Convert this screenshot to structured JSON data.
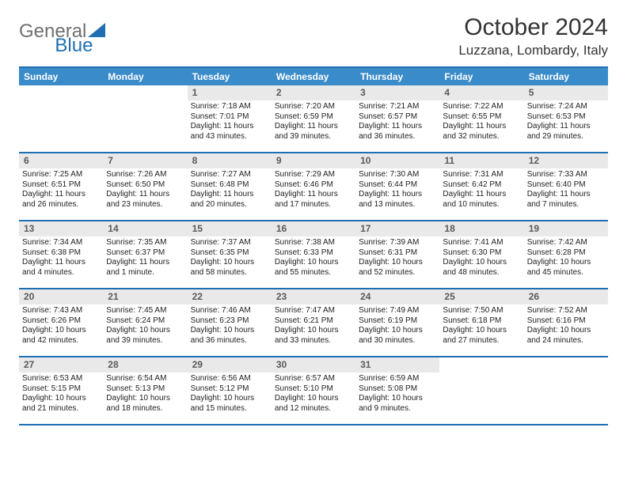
{
  "brand": {
    "part1": "General",
    "part2": "Blue"
  },
  "title": "October 2024",
  "location": "Luzzana, Lombardy, Italy",
  "colors": {
    "header_bar": "#3a8bc9",
    "rule": "#1f6fb2",
    "daynum_bg": "#e9e9e9",
    "logo_gray": "#6f6f6f",
    "logo_blue": "#1f6fb2"
  },
  "dow": [
    "Sunday",
    "Monday",
    "Tuesday",
    "Wednesday",
    "Thursday",
    "Friday",
    "Saturday"
  ],
  "weeks": [
    [
      {
        "n": "",
        "sr": "",
        "ss": "",
        "dl": ""
      },
      {
        "n": "",
        "sr": "",
        "ss": "",
        "dl": ""
      },
      {
        "n": "1",
        "sr": "Sunrise: 7:18 AM",
        "ss": "Sunset: 7:01 PM",
        "dl": "Daylight: 11 hours and 43 minutes."
      },
      {
        "n": "2",
        "sr": "Sunrise: 7:20 AM",
        "ss": "Sunset: 6:59 PM",
        "dl": "Daylight: 11 hours and 39 minutes."
      },
      {
        "n": "3",
        "sr": "Sunrise: 7:21 AM",
        "ss": "Sunset: 6:57 PM",
        "dl": "Daylight: 11 hours and 36 minutes."
      },
      {
        "n": "4",
        "sr": "Sunrise: 7:22 AM",
        "ss": "Sunset: 6:55 PM",
        "dl": "Daylight: 11 hours and 32 minutes."
      },
      {
        "n": "5",
        "sr": "Sunrise: 7:24 AM",
        "ss": "Sunset: 6:53 PM",
        "dl": "Daylight: 11 hours and 29 minutes."
      }
    ],
    [
      {
        "n": "6",
        "sr": "Sunrise: 7:25 AM",
        "ss": "Sunset: 6:51 PM",
        "dl": "Daylight: 11 hours and 26 minutes."
      },
      {
        "n": "7",
        "sr": "Sunrise: 7:26 AM",
        "ss": "Sunset: 6:50 PM",
        "dl": "Daylight: 11 hours and 23 minutes."
      },
      {
        "n": "8",
        "sr": "Sunrise: 7:27 AM",
        "ss": "Sunset: 6:48 PM",
        "dl": "Daylight: 11 hours and 20 minutes."
      },
      {
        "n": "9",
        "sr": "Sunrise: 7:29 AM",
        "ss": "Sunset: 6:46 PM",
        "dl": "Daylight: 11 hours and 17 minutes."
      },
      {
        "n": "10",
        "sr": "Sunrise: 7:30 AM",
        "ss": "Sunset: 6:44 PM",
        "dl": "Daylight: 11 hours and 13 minutes."
      },
      {
        "n": "11",
        "sr": "Sunrise: 7:31 AM",
        "ss": "Sunset: 6:42 PM",
        "dl": "Daylight: 11 hours and 10 minutes."
      },
      {
        "n": "12",
        "sr": "Sunrise: 7:33 AM",
        "ss": "Sunset: 6:40 PM",
        "dl": "Daylight: 11 hours and 7 minutes."
      }
    ],
    [
      {
        "n": "13",
        "sr": "Sunrise: 7:34 AM",
        "ss": "Sunset: 6:38 PM",
        "dl": "Daylight: 11 hours and 4 minutes."
      },
      {
        "n": "14",
        "sr": "Sunrise: 7:35 AM",
        "ss": "Sunset: 6:37 PM",
        "dl": "Daylight: 11 hours and 1 minute."
      },
      {
        "n": "15",
        "sr": "Sunrise: 7:37 AM",
        "ss": "Sunset: 6:35 PM",
        "dl": "Daylight: 10 hours and 58 minutes."
      },
      {
        "n": "16",
        "sr": "Sunrise: 7:38 AM",
        "ss": "Sunset: 6:33 PM",
        "dl": "Daylight: 10 hours and 55 minutes."
      },
      {
        "n": "17",
        "sr": "Sunrise: 7:39 AM",
        "ss": "Sunset: 6:31 PM",
        "dl": "Daylight: 10 hours and 52 minutes."
      },
      {
        "n": "18",
        "sr": "Sunrise: 7:41 AM",
        "ss": "Sunset: 6:30 PM",
        "dl": "Daylight: 10 hours and 48 minutes."
      },
      {
        "n": "19",
        "sr": "Sunrise: 7:42 AM",
        "ss": "Sunset: 6:28 PM",
        "dl": "Daylight: 10 hours and 45 minutes."
      }
    ],
    [
      {
        "n": "20",
        "sr": "Sunrise: 7:43 AM",
        "ss": "Sunset: 6:26 PM",
        "dl": "Daylight: 10 hours and 42 minutes."
      },
      {
        "n": "21",
        "sr": "Sunrise: 7:45 AM",
        "ss": "Sunset: 6:24 PM",
        "dl": "Daylight: 10 hours and 39 minutes."
      },
      {
        "n": "22",
        "sr": "Sunrise: 7:46 AM",
        "ss": "Sunset: 6:23 PM",
        "dl": "Daylight: 10 hours and 36 minutes."
      },
      {
        "n": "23",
        "sr": "Sunrise: 7:47 AM",
        "ss": "Sunset: 6:21 PM",
        "dl": "Daylight: 10 hours and 33 minutes."
      },
      {
        "n": "24",
        "sr": "Sunrise: 7:49 AM",
        "ss": "Sunset: 6:19 PM",
        "dl": "Daylight: 10 hours and 30 minutes."
      },
      {
        "n": "25",
        "sr": "Sunrise: 7:50 AM",
        "ss": "Sunset: 6:18 PM",
        "dl": "Daylight: 10 hours and 27 minutes."
      },
      {
        "n": "26",
        "sr": "Sunrise: 7:52 AM",
        "ss": "Sunset: 6:16 PM",
        "dl": "Daylight: 10 hours and 24 minutes."
      }
    ],
    [
      {
        "n": "27",
        "sr": "Sunrise: 6:53 AM",
        "ss": "Sunset: 5:15 PM",
        "dl": "Daylight: 10 hours and 21 minutes."
      },
      {
        "n": "28",
        "sr": "Sunrise: 6:54 AM",
        "ss": "Sunset: 5:13 PM",
        "dl": "Daylight: 10 hours and 18 minutes."
      },
      {
        "n": "29",
        "sr": "Sunrise: 6:56 AM",
        "ss": "Sunset: 5:12 PM",
        "dl": "Daylight: 10 hours and 15 minutes."
      },
      {
        "n": "30",
        "sr": "Sunrise: 6:57 AM",
        "ss": "Sunset: 5:10 PM",
        "dl": "Daylight: 10 hours and 12 minutes."
      },
      {
        "n": "31",
        "sr": "Sunrise: 6:59 AM",
        "ss": "Sunset: 5:08 PM",
        "dl": "Daylight: 10 hours and 9 minutes."
      },
      {
        "n": "",
        "sr": "",
        "ss": "",
        "dl": ""
      },
      {
        "n": "",
        "sr": "",
        "ss": "",
        "dl": ""
      }
    ]
  ]
}
